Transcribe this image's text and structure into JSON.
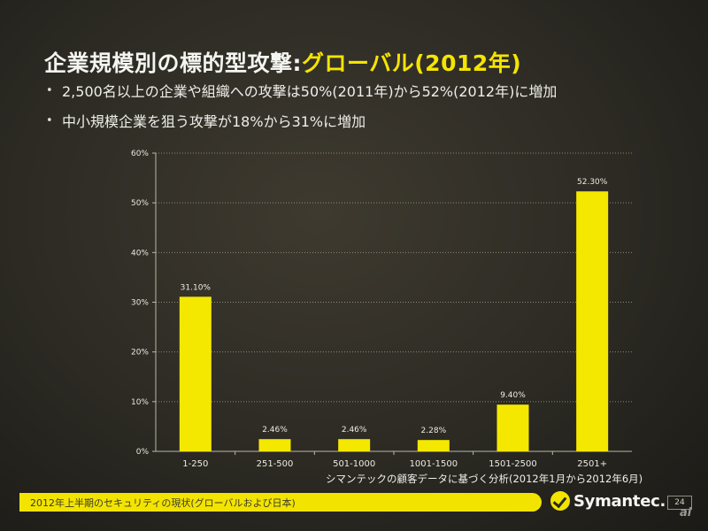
{
  "slide": {
    "title_main": "企業規模別の標的型攻撃:",
    "title_accent": "グローバル(2012年)",
    "bullets": [
      "2,500名以上の企業や組織への攻撃は50%(2011年)から52%(2012年)に増加",
      "中小規模企業を狙う攻撃が18%から31%に増加"
    ],
    "source_note": "シマンテックの顧客データに基づく分析(2012年1月から2012年6月)",
    "footer_text": "2012年上半期のセキュリティの現状(グローバルおよび日本)",
    "logo_text": "Symantec.",
    "page_number": "24",
    "watermark": "ai"
  },
  "colors": {
    "bar": "#f5e800",
    "accent": "#f5e400",
    "grid": "#8a8a7a",
    "axis": "#b8b8a8"
  },
  "chart_data": {
    "type": "bar",
    "title": "",
    "xlabel": "",
    "ylabel": "",
    "categories": [
      "1-250",
      "251-500",
      "501-1000",
      "1001-1500",
      "1501-2500",
      "2501+"
    ],
    "values": [
      31.1,
      2.46,
      2.46,
      2.28,
      9.4,
      52.3
    ],
    "value_labels": [
      "31.10%",
      "2.46%",
      "2.46%",
      "2.28%",
      "9.40%",
      "52.30%"
    ],
    "yticks": [
      0,
      10,
      20,
      30,
      40,
      50,
      60
    ],
    "ytick_labels": [
      "0%",
      "10%",
      "20%",
      "30%",
      "40%",
      "50%",
      "60%"
    ],
    "ylim": [
      0,
      60
    ],
    "grid": true,
    "legend": "none"
  }
}
